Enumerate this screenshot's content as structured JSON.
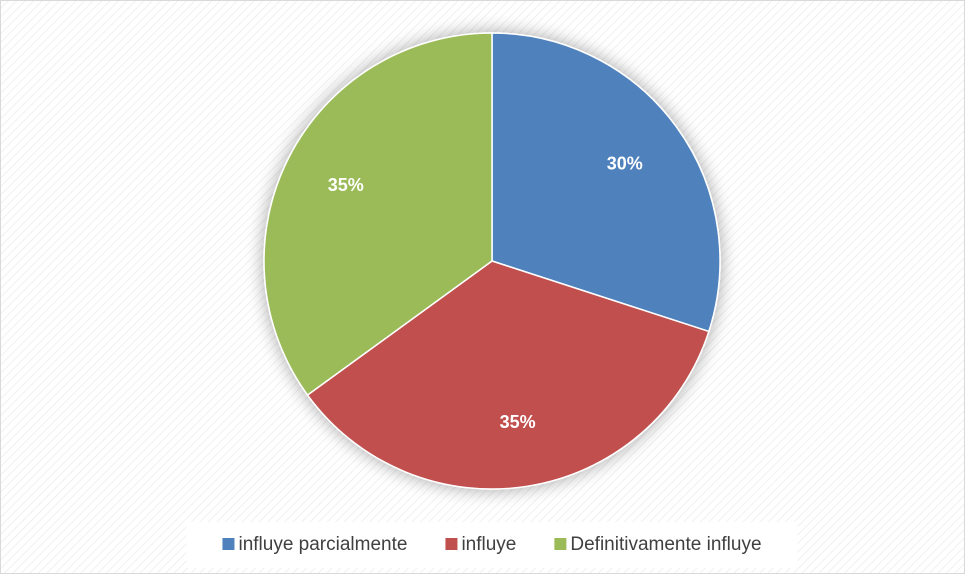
{
  "chart_data": {
    "type": "pie",
    "categories": [
      "influye parcialmente",
      "influye",
      "Definitivamente influye"
    ],
    "values": [
      30,
      35,
      35
    ],
    "value_labels": [
      "30%",
      "35%",
      "35%"
    ],
    "colors": [
      "#4f81bd",
      "#c0504d",
      "#9bbb59"
    ],
    "legend": "bottom"
  }
}
